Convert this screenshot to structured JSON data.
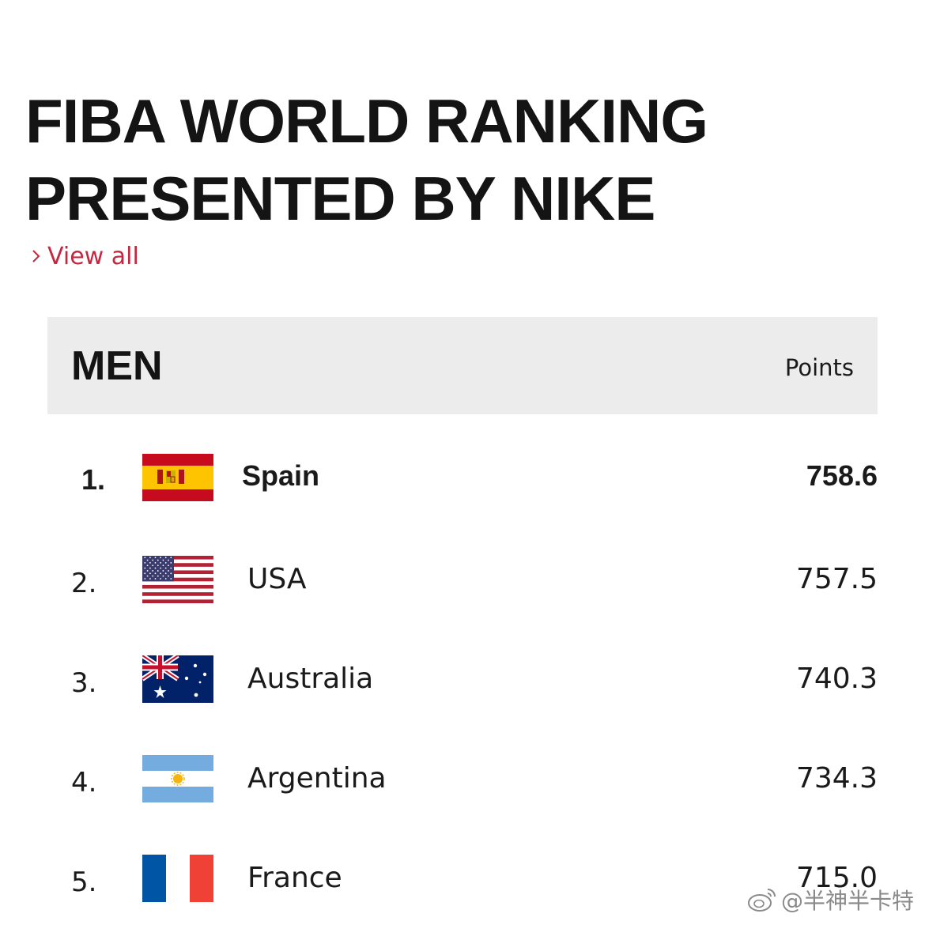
{
  "header": {
    "title_line1": "FIBA WORLD RANKING",
    "title_line2": "PRESENTED BY NIKE",
    "view_all": "View all",
    "view_all_icon": "chevron-right-icon",
    "accent_color": "#c4273f"
  },
  "ranking": {
    "category": "MEN",
    "points_header": "Points",
    "rows": [
      {
        "rank": "1.",
        "country": "Spain",
        "points": "758.6",
        "flag": "spain-flag-icon"
      },
      {
        "rank": "2.",
        "country": "USA",
        "points": "757.5",
        "flag": "usa-flag-icon"
      },
      {
        "rank": "3.",
        "country": "Australia",
        "points": "740.3",
        "flag": "australia-flag-icon"
      },
      {
        "rank": "4.",
        "country": "Argentina",
        "points": "734.3",
        "flag": "argentina-flag-icon"
      },
      {
        "rank": "5.",
        "country": "France",
        "points": "715.0",
        "flag": "france-flag-icon"
      }
    ]
  },
  "watermark": {
    "text": "@半神半卡特",
    "icon": "weibo-icon"
  }
}
